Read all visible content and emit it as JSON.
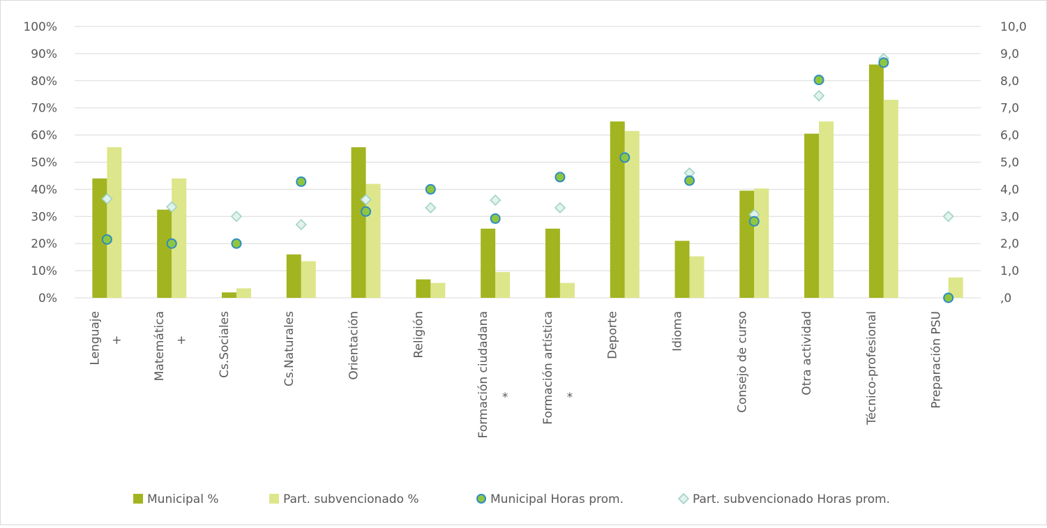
{
  "chart_data": {
    "type": "bar",
    "categories": [
      "Lenguaje",
      "Matemática",
      "Cs.Sociales",
      "Cs.Naturales",
      "Orientación",
      "Religión",
      "Formación ciudadana",
      "Formación artística",
      "Deporte",
      "Idioma",
      "Consejo de curso",
      "Otra actividad",
      "Técnico-profesional",
      "Preparación PSU"
    ],
    "category_marks": [
      "+",
      "+",
      "",
      "",
      "",
      "",
      "*",
      "*",
      "",
      "",
      "",
      "",
      "",
      ""
    ],
    "series": [
      {
        "name": "Municipal %",
        "kind": "bar",
        "axis": "left",
        "color": "#a2b420",
        "values": [
          44,
          32.5,
          2,
          16,
          55.5,
          6.8,
          25.5,
          25.5,
          65,
          21,
          39.5,
          60.5,
          86,
          0
        ]
      },
      {
        "name": "Part. subvencionado %",
        "kind": "bar",
        "axis": "left",
        "color": "#dde68a",
        "values": [
          55.5,
          44,
          3.5,
          13.5,
          42,
          5.5,
          9.5,
          5.5,
          61.5,
          15.3,
          40.3,
          65,
          73,
          7.5
        ]
      },
      {
        "name": "Municipal Horas prom.",
        "kind": "marker-circle",
        "axis": "right",
        "color": "#8ec641",
        "stroke": "#2e8bc0",
        "values": [
          2.15,
          2.0,
          2.0,
          4.28,
          3.18,
          4.0,
          2.92,
          4.45,
          5.17,
          4.32,
          2.82,
          8.03,
          8.67,
          0
        ]
      },
      {
        "name": "Part. subvencionado Horas prom.",
        "kind": "marker-diamond",
        "axis": "right",
        "color": "#e2f2ec",
        "stroke": "#9fd3c7",
        "values": [
          3.65,
          3.35,
          3.0,
          2.7,
          3.62,
          3.32,
          3.6,
          3.32,
          5.2,
          4.6,
          3.07,
          7.45,
          8.82,
          3.0
        ]
      }
    ],
    "y_left": {
      "ylim": [
        0,
        100
      ],
      "ticks": [
        "0%",
        "10%",
        "20%",
        "30%",
        "40%",
        "50%",
        "60%",
        "70%",
        "80%",
        "90%",
        "100%"
      ]
    },
    "y_right": {
      "ylim": [
        0,
        10
      ],
      "ticks": [
        ",0",
        "1,0",
        "2,0",
        "3,0",
        "4,0",
        "5,0",
        "6,0",
        "7,0",
        "8,0",
        "9,0",
        "10,0"
      ]
    },
    "grid": true,
    "legend_position": "bottom",
    "colors": {
      "grid": "#d9d9d9",
      "text": "#595959"
    }
  }
}
